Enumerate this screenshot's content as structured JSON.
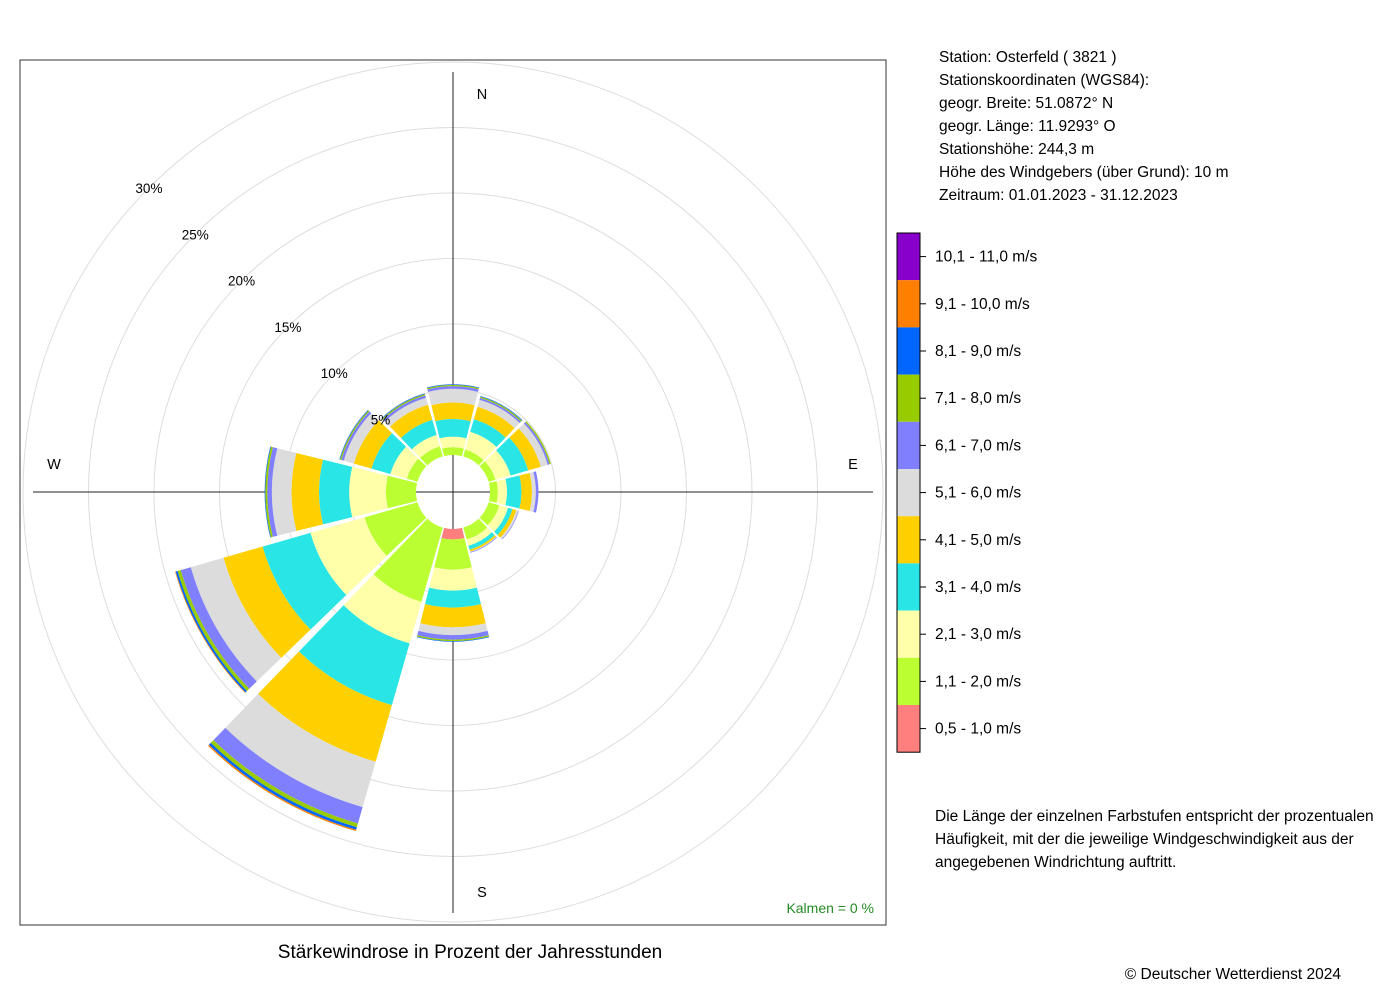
{
  "station": {
    "line1": "Station:  Osterfeld  ( 3821 )",
    "line2": "Stationskoordinaten (WGS84):",
    "line3": "geogr. Breite: 51.0872° N",
    "line4": "geogr. Länge: 11.9293° O",
    "line5": "Stationshöhe: 244,3 m",
    "line6": "Höhe des Windgebers (über Grund): 10 m",
    "line7": "Zeitraum: 01.01.2023 - 31.12.2023"
  },
  "explanation": "Die Länge der einzelnen Farbstufen entspricht der prozentualen Häufigkeit, mit der die jeweilige Windgeschwindigkeit aus der angegebenen Windrichtung auftritt.",
  "copyright": "© Deutscher Wetterdienst  2024",
  "chart_data": {
    "type": "windrose",
    "title": "Stärkewindrose in Prozent der Jahresstunden",
    "calm_label": "Kalmen  =  0 %",
    "calm_color": "#228b22",
    "direction_labels": [
      "N",
      "E",
      "S",
      "W"
    ],
    "radial_ticks": [
      "5%",
      "10%",
      "15%",
      "20%",
      "25%",
      "30%"
    ],
    "radial_values": [
      5,
      10,
      15,
      20,
      25,
      30
    ],
    "radial_max": 30,
    "grid": true,
    "legend_position": "right",
    "speed_classes": [
      {
        "label": "0,5 - 1,0 m/s",
        "color": "#ff7f7f"
      },
      {
        "label": "1,1 - 2,0 m/s",
        "color": "#bbff33"
      },
      {
        "label": "2,1 - 3,0 m/s",
        "color": "#ffffaa"
      },
      {
        "label": "3,1 - 4,0 m/s",
        "color": "#2ae5e5"
      },
      {
        "label": "4,1 - 5,0 m/s",
        "color": "#ffd000"
      },
      {
        "label": "5,1 - 6,0 m/s",
        "color": "#dcdcdc"
      },
      {
        "label": "6,1 - 7,0 m/s",
        "color": "#8080ff"
      },
      {
        "label": "7,1 - 8,0 m/s",
        "color": "#99cc00"
      },
      {
        "label": "8,1 - 9,0 m/s",
        "color": "#0066ff"
      },
      {
        "label": "9,1 - 10,0 m/s",
        "color": "#ff8000"
      },
      {
        "label": "10,1 - 11,0 m/s",
        "color": "#8800cc"
      }
    ],
    "sectors": [
      {
        "direction": 0,
        "values": [
          0.0,
          0.6,
          0.8,
          1.35,
          1.25,
          1.05,
          0.2,
          0.1,
          0.05,
          0.0,
          0.0
        ]
      },
      {
        "direction": 30,
        "values": [
          0.0,
          0.55,
          1.4,
          1.0,
          1.0,
          0.55,
          0.15,
          0.1,
          0.05,
          0.0,
          0.0
        ]
      },
      {
        "direction": 60,
        "values": [
          0.0,
          0.55,
          1.2,
          1.4,
          1.0,
          0.55,
          0.15,
          0.1,
          0.0,
          0.0,
          0.0
        ]
      },
      {
        "direction": 90,
        "values": [
          0.0,
          0.6,
          0.7,
          1.1,
          0.8,
          0.3,
          0.2,
          0.0,
          0.0,
          0.0,
          0.0
        ]
      },
      {
        "direction": 120,
        "values": [
          0.0,
          0.85,
          0.7,
          0.35,
          0.3,
          0.15,
          0.05,
          0.0,
          0.0,
          0.0,
          0.0
        ]
      },
      {
        "direction": 150,
        "values": [
          0.0,
          0.95,
          0.5,
          0.3,
          0.15,
          0.05,
          0.05,
          0.0,
          0.0,
          0.0,
          0.0
        ]
      },
      {
        "direction": 180,
        "values": [
          0.8,
          2.3,
          1.6,
          1.3,
          1.5,
          0.6,
          0.35,
          0.1,
          0.05,
          0.0,
          0.0
        ]
      },
      {
        "direction": 210,
        "values": [
          0.0,
          5.9,
          3.3,
          4.9,
          4.5,
          3.6,
          1.3,
          0.3,
          0.2,
          0.1,
          0.0
        ]
      },
      {
        "direction": 240,
        "values": [
          0.0,
          4.2,
          4.3,
          3.8,
          3.1,
          2.6,
          0.8,
          0.25,
          0.15,
          0.05,
          0.0
        ]
      },
      {
        "direction": 270,
        "values": [
          0.0,
          2.3,
          2.8,
          2.3,
          2.1,
          1.5,
          0.35,
          0.15,
          0.05,
          0.0,
          0.0
        ]
      },
      {
        "direction": 300,
        "values": [
          0.0,
          0.85,
          1.3,
          1.5,
          1.4,
          0.8,
          0.2,
          0.1,
          0.05,
          0.0,
          0.0
        ]
      },
      {
        "direction": 330,
        "values": [
          0.0,
          0.8,
          0.9,
          1.2,
          1.2,
          0.55,
          0.2,
          0.1,
          0.05,
          0.0,
          0.0
        ]
      }
    ]
  }
}
